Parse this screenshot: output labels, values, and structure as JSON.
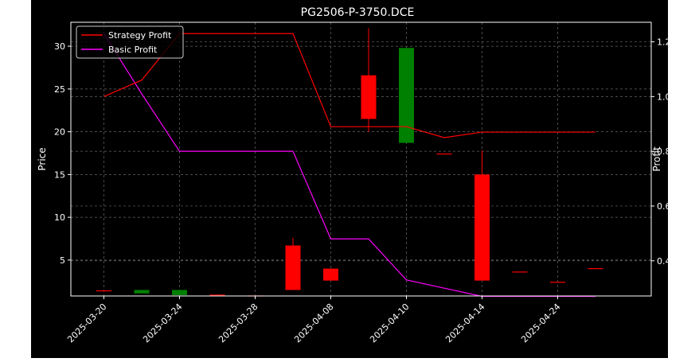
{
  "chart_data": {
    "type": "candlestick",
    "title": "PG2506-P-3750.DCE",
    "xlabel": "",
    "ylabel_left": "Price",
    "ylabel_right": "Profit",
    "x_ticks": [
      "2025-03-20",
      "2025-03-24",
      "2025-03-28",
      "2025-04-08",
      "2025-04-10",
      "2025-04-14",
      "2025-04-24"
    ],
    "y_ticks_left": [
      5,
      10,
      15,
      20,
      25,
      30
    ],
    "y_ticks_right": [
      "0.4",
      "0.6",
      "0.8",
      "1.0",
      "1.2"
    ],
    "ylim_left": [
      0.8,
      32.8
    ],
    "ylim_right": [
      0.2714,
      1.2714
    ],
    "grid": true,
    "legend_position": "top-left",
    "legend": [
      {
        "name": "Strategy Profit",
        "color": "#ff0000"
      },
      {
        "name": "Basic Profit",
        "color": "#ff00ff"
      }
    ],
    "colors": {
      "up": "#ff0000",
      "down": "#008000",
      "background": "#000000",
      "axes": "#ffffff"
    },
    "candles": [
      {
        "i": 0,
        "open": 1.3,
        "close": 1.4,
        "high": 1.4,
        "low": 1.3
      },
      {
        "i": 1,
        "open": 1.5,
        "close": 1.1,
        "high": 1.5,
        "low": 1.1
      },
      {
        "i": 2,
        "open": 1.5,
        "close": 0.9,
        "high": 1.5,
        "low": 0.9
      },
      {
        "i": 3,
        "open": 0.9,
        "close": 0.9,
        "high": 0.9,
        "low": 0.9
      },
      {
        "i": 4,
        "open": 0.8,
        "close": 0.8,
        "high": 0.8,
        "low": 0.8
      },
      {
        "i": 5,
        "open": 1.5,
        "close": 6.7,
        "high": 7.6,
        "low": 1.5
      },
      {
        "i": 6,
        "open": 2.6,
        "close": 4.0,
        "high": 4.0,
        "low": 2.6
      },
      {
        "i": 7,
        "open": 21.5,
        "close": 26.6,
        "high": 32.1,
        "low": 20.0
      },
      {
        "i": 8,
        "open": 29.8,
        "close": 18.7,
        "high": 29.8,
        "low": 18.7
      },
      {
        "i": 9,
        "open": 17.4,
        "close": 17.4,
        "high": 17.4,
        "low": 17.4
      },
      {
        "i": 10,
        "open": 2.6,
        "close": 15.0,
        "high": 17.8,
        "low": 2.6
      },
      {
        "i": 11,
        "open": 3.6,
        "close": 3.6,
        "high": 3.6,
        "low": 3.6
      },
      {
        "i": 12,
        "open": 2.4,
        "close": 2.4,
        "high": 2.4,
        "low": 2.4
      },
      {
        "i": 13,
        "open": 4.0,
        "close": 4.0,
        "high": 4.0,
        "low": 4.0
      }
    ],
    "strategy_profit": [
      1.0,
      1.06,
      1.23,
      1.23,
      1.23,
      1.23,
      0.89,
      0.89,
      0.89,
      0.85,
      0.87,
      0.87,
      0.87,
      0.87
    ],
    "basic_profit": [
      1.23,
      1.01,
      0.8,
      0.8,
      0.8,
      0.8,
      0.48,
      0.48,
      0.33,
      0.3,
      0.27,
      0.27,
      0.27,
      0.27
    ]
  }
}
